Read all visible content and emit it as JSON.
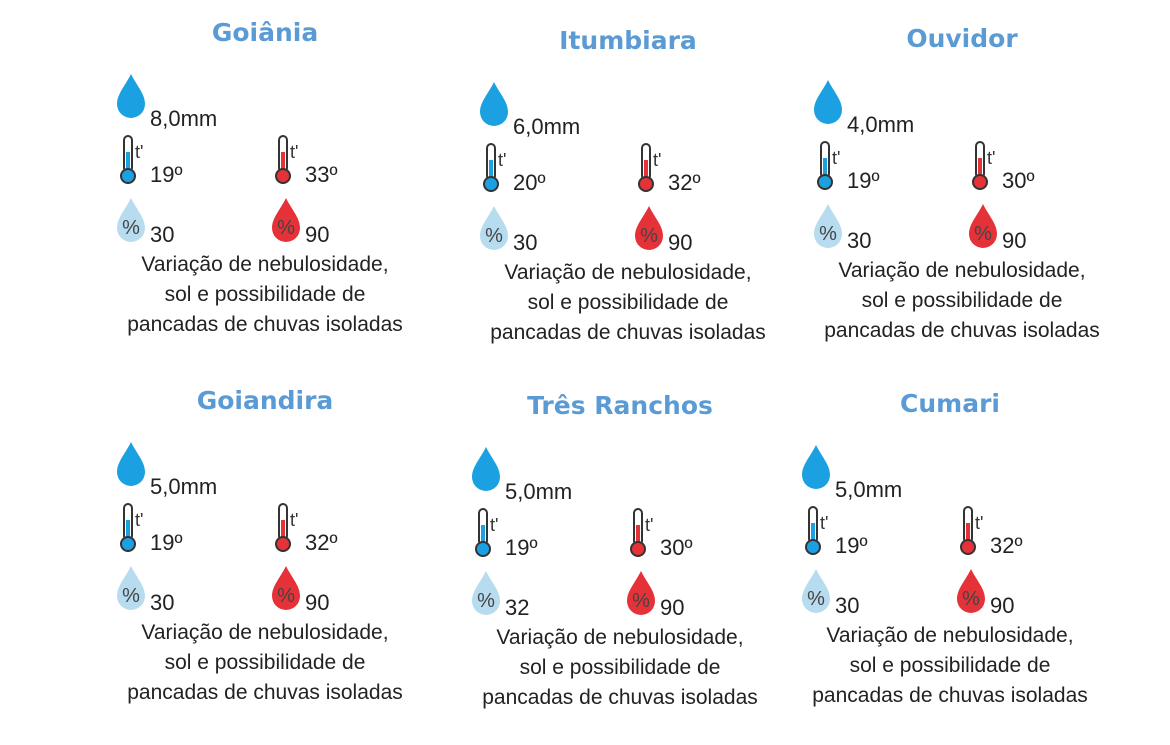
{
  "colors": {
    "title": "#5b9bd5",
    "rain": "#1ba1e2",
    "cold": "#1ba1e2",
    "hot": "#e53238",
    "humidity_low": "#b7dcef",
    "humidity_high": "#e53238"
  },
  "cities": [
    {
      "name": "Goiânia",
      "rain": "8,0mm",
      "min_temp": "19º",
      "max_temp": "33º",
      "min_humidity": "30",
      "max_humidity": "90",
      "description": [
        "Variação de nebulosidade,",
        "sol e possibilidade de",
        "pancadas de chuvas isoladas"
      ]
    },
    {
      "name": "Itumbiara",
      "rain": "6,0mm",
      "min_temp": "20º",
      "max_temp": "32º",
      "min_humidity": "30",
      "max_humidity": "90",
      "description": [
        "Variação de nebulosidade,",
        "sol e possibilidade de",
        "pancadas de chuvas isoladas"
      ]
    },
    {
      "name": "Ouvidor",
      "rain": "4,0mm",
      "min_temp": "19º",
      "max_temp": "30º",
      "min_humidity": "30",
      "max_humidity": "90",
      "description": [
        "Variação de nebulosidade,",
        "sol e possibilidade de",
        "pancadas de chuvas isoladas"
      ]
    },
    {
      "name": "Goiandira",
      "rain": "5,0mm",
      "min_temp": "19º",
      "max_temp": "32º",
      "min_humidity": "30",
      "max_humidity": "90",
      "description": [
        "Variação de nebulosidade,",
        "sol e possibilidade de",
        "pancadas de chuvas isoladas"
      ]
    },
    {
      "name": "Três Ranchos",
      "rain": "5,0mm",
      "min_temp": "19º",
      "max_temp": "30º",
      "min_humidity": "32",
      "max_humidity": "90",
      "description": [
        "Variação de nebulosidade,",
        "sol e possibilidade de",
        "pancadas de chuvas isoladas"
      ]
    },
    {
      "name": "Cumari",
      "rain": "5,0mm",
      "min_temp": "19º",
      "max_temp": "32º",
      "min_humidity": "30",
      "max_humidity": "90",
      "description": [
        "Variação de nebulosidade,",
        "sol e possibilidade de",
        "pancadas de chuvas isoladas"
      ]
    }
  ]
}
